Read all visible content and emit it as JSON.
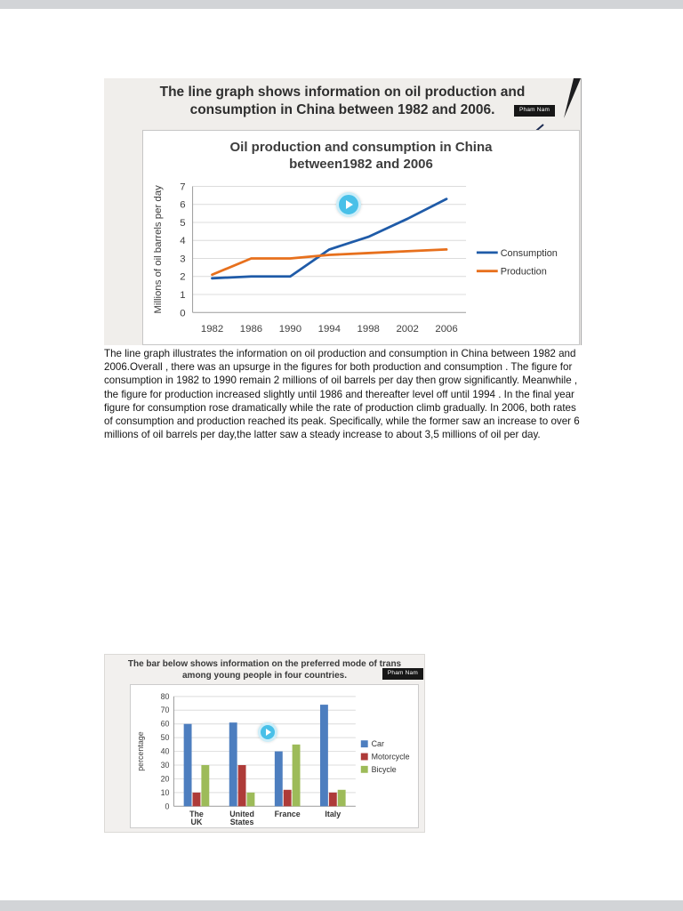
{
  "page": {
    "top_edge_color": "#d2d4d7",
    "bottom_edge_color": "#d2d4d7"
  },
  "line_figure": {
    "prompt_line1": "The line graph shows information on oil production and",
    "prompt_line2": "consumption in China between 1982 and 2006.",
    "watermark": "Pham Nam",
    "chart_title_line1": "Oil production and consumption in China",
    "chart_title_line2": "between1982 and 2006"
  },
  "essay": {
    "text": "The line graph illustrates the information on oil production and consumption in China between 1982 and 2006.Overall , there was an upsurge in the figures for both production and consumption . The figure for consumption in 1982 to 1990 remain 2 millions of oil barrels per day then grow significantly. Meanwhile , the figure for production increased slightly until 1986 and thereafter level off until 1994 . In the final year figure for consumption rose dramatically while the rate of production climb gradually. In 2006, both rates of consumption and production reached its peak. Specifically, while the former saw an increase to over 6 millions of oil barrels per day,the latter saw a steady increase to about 3,5 millions of oil per day."
  },
  "bar_figure": {
    "prompt_line1": "The bar below shows information on the preferred mode of trans",
    "prompt_line2": "among young people in four countries.",
    "watermark": "Pham Nam"
  },
  "chart_data": [
    {
      "type": "line",
      "title": "Oil production and consumption in China between1982 and 2006",
      "ylabel": "Millions of oil barrels per day",
      "x": [
        "1982",
        "1986",
        "1990",
        "1994",
        "1998",
        "2002",
        "2006"
      ],
      "ylim": [
        0,
        7
      ],
      "yticks": [
        0,
        1,
        2,
        3,
        4,
        5,
        6,
        7
      ],
      "grid": true,
      "legend_position": "right",
      "series": [
        {
          "name": "Consumption",
          "color": "#1f5ba8",
          "values": [
            1.9,
            2.0,
            2.0,
            3.5,
            4.2,
            5.2,
            6.3
          ]
        },
        {
          "name": "Production",
          "color": "#e7701d",
          "values": [
            2.1,
            3.0,
            3.0,
            3.2,
            3.3,
            3.4,
            3.5
          ]
        }
      ]
    },
    {
      "type": "bar",
      "title": "",
      "ylabel": "percentage",
      "categories": [
        "The UK",
        "United States",
        "France",
        "Italy"
      ],
      "ylim": [
        0,
        80
      ],
      "yticks": [
        0,
        10,
        20,
        30,
        40,
        50,
        60,
        70,
        80
      ],
      "grid": true,
      "legend_position": "right",
      "series": [
        {
          "name": "Car",
          "color": "#4d7ebf",
          "values": [
            60,
            61,
            40,
            74
          ]
        },
        {
          "name": "Motorcycle",
          "color": "#ae3b39",
          "values": [
            10,
            30,
            12,
            10
          ]
        },
        {
          "name": "Bicycle",
          "color": "#9dbb59",
          "values": [
            30,
            10,
            45,
            12
          ]
        }
      ]
    }
  ]
}
